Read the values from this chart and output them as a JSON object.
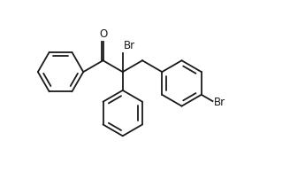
{
  "background": "#ffffff",
  "line_color": "#1a1a1a",
  "line_width": 1.3,
  "font_size": 8.5,
  "label_Br1": "Br",
  "label_Br2": "Br",
  "label_O": "O",
  "fig_width": 3.28,
  "fig_height": 1.94,
  "dpi": 100,
  "xlim": [
    0,
    11
  ],
  "ylim": [
    -4.2,
    3.5
  ]
}
